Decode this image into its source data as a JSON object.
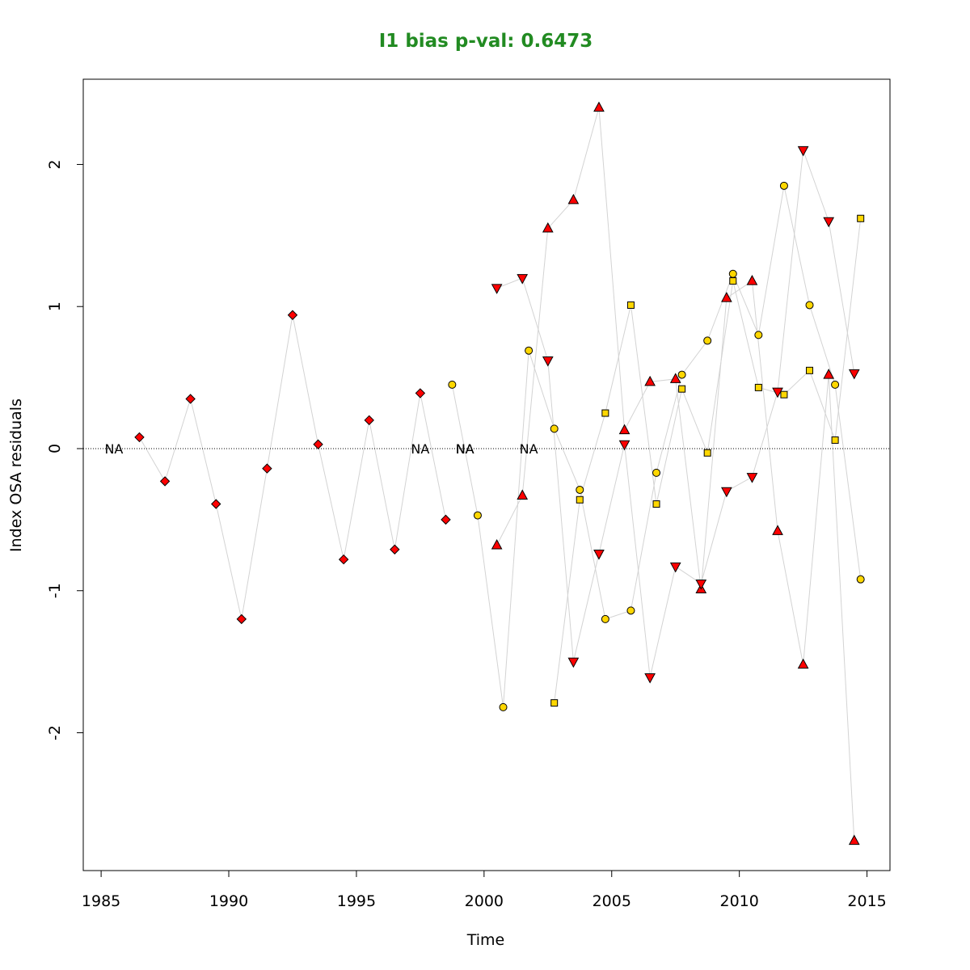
{
  "chart_data": {
    "type": "scatter",
    "title": "I1 bias p-val: 0.6473",
    "title_color": "#228b22",
    "xlabel": "Time",
    "ylabel": "Index OSA residuals",
    "xlim": [
      1984.3,
      2015.9
    ],
    "ylim": [
      -2.97,
      2.6
    ],
    "x_ticks": [
      1985,
      1990,
      1995,
      2000,
      2005,
      2010,
      2015
    ],
    "y_ticks": [
      -2,
      -1,
      0,
      1,
      2
    ],
    "reference_line": {
      "y": 0,
      "style": "dotted"
    },
    "connector_color": "#d3d3d3",
    "na_label": "NA",
    "series": [
      {
        "marker": "diamond",
        "fill": "#ff0000",
        "x": [
          1985.5,
          1986.5,
          1987.5,
          1988.5,
          1989.5,
          1990.5,
          1991.5,
          1992.5,
          1993.5,
          1994.5,
          1995.5,
          1996.5,
          1997.5,
          1998.5
        ],
        "y": [
          null,
          0.08,
          -0.23,
          0.35,
          -0.39,
          -1.2,
          -0.14,
          0.94,
          0.03,
          -0.78,
          0.2,
          -0.71,
          0.39,
          -0.5
        ]
      },
      {
        "marker": "circle",
        "fill": "#ffd700",
        "x": [
          1998.75,
          1999.75,
          2000.75,
          2001.75,
          2002.75,
          2003.75,
          2004.75,
          2005.75,
          2006.75,
          2007.75,
          2008.75,
          2009.75,
          2010.75,
          2011.75,
          2012.75,
          2013.75,
          2014.75
        ],
        "y": [
          0.45,
          -0.47,
          -1.82,
          0.69,
          0.14,
          -0.29,
          -1.2,
          -1.14,
          -0.17,
          0.52,
          0.76,
          1.23,
          0.8,
          1.85,
          1.01,
          0.45,
          -0.92
        ]
      },
      {
        "marker": "square",
        "fill": "#ffd700",
        "x": [
          1999.25,
          2002.75,
          2003.75,
          2004.75,
          2005.75,
          2006.75,
          2007.75,
          2008.75,
          2009.75,
          2010.75,
          2011.75,
          2012.75,
          2013.75,
          2014.75
        ],
        "y": [
          null,
          -1.79,
          -0.36,
          0.25,
          1.01,
          -0.39,
          0.42,
          -0.03,
          1.18,
          0.43,
          0.38,
          0.55,
          0.06,
          1.62
        ]
      },
      {
        "marker": "triangle-up",
        "fill": "#ff0000",
        "x": [
          2000.5,
          2001.5,
          2002.5,
          2003.5,
          2004.5,
          2005.5,
          2006.5,
          2007.5,
          2008.5,
          2009.5,
          2010.5,
          2011.5,
          2012.5,
          2013.5,
          2014.5
        ],
        "y": [
          -0.68,
          -0.33,
          1.55,
          1.75,
          2.4,
          0.13,
          0.47,
          0.49,
          -0.99,
          1.06,
          1.18,
          -0.58,
          -1.52,
          0.52,
          -2.76
        ]
      },
      {
        "marker": "triangle-down",
        "fill": "#ff0000",
        "x": [
          1997.5,
          1999.25,
          2000.5,
          2001.5,
          2002.5,
          2003.5,
          2004.5,
          2005.5,
          2006.5,
          2007.5,
          2008.5,
          2009.5,
          2010.5,
          2011.5,
          2012.5,
          2013.5,
          2014.5
        ],
        "y": [
          null,
          null,
          1.13,
          1.2,
          0.62,
          -1.5,
          -0.74,
          0.03,
          -1.61,
          -0.83,
          -0.95,
          -0.3,
          -0.2,
          0.4,
          2.1,
          1.6,
          0.53
        ]
      },
      {
        "marker": "none",
        "fill": "#ffffff",
        "x": [
          2001.75
        ],
        "y": [
          null
        ]
      }
    ]
  }
}
